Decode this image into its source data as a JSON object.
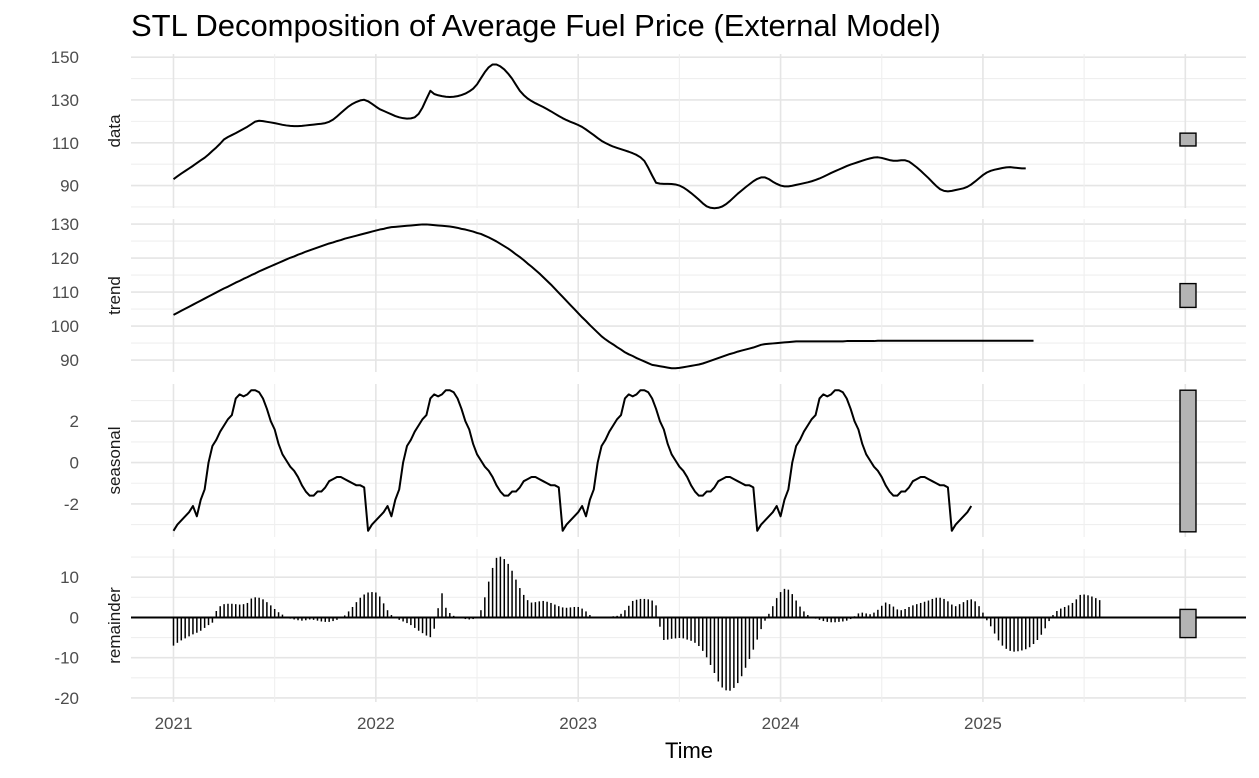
{
  "chart_data": {
    "type": "line",
    "title": "STL Decomposition of Average Fuel Price (External Model)",
    "xlabel": "Time",
    "x_ticks": [
      "2021",
      "2022",
      "2023",
      "2024",
      "2025"
    ],
    "xlim": [
      2020.79,
      2026.3
    ],
    "x_start": 2021.0,
    "x_step": 0.0192308,
    "grid": true,
    "panels": [
      {
        "name": "data",
        "type": "line",
        "ylim": [
          79.5,
          151.5
        ],
        "y_ticks": [
          90,
          110,
          130,
          150
        ],
        "y_tick_labels": [
          "90",
          "110",
          "130",
          "150"
        ],
        "range_bar": [
          108.5,
          114.5
        ],
        "values": [
          93.0,
          94.3,
          95.6,
          96.8,
          98.0,
          99.2,
          100.5,
          101.8,
          103.0,
          104.5,
          106.2,
          107.8,
          109.6,
          111.6,
          112.7,
          113.6,
          114.5,
          115.5,
          116.5,
          117.5,
          118.7,
          119.9,
          120.3,
          120.1,
          119.8,
          119.5,
          119.2,
          118.8,
          118.4,
          118.1,
          117.9,
          117.8,
          117.8,
          117.9,
          118.1,
          118.3,
          118.5,
          118.7,
          118.9,
          119.2,
          119.8,
          120.8,
          122.3,
          123.9,
          125.5,
          127.0,
          128.2,
          129.1,
          129.8,
          130.1,
          129.4,
          128.2,
          126.9,
          125.7,
          124.9,
          124.1,
          123.3,
          122.5,
          121.9,
          121.5,
          121.3,
          121.4,
          121.9,
          123.5,
          126.5,
          130.5,
          134.3,
          132.8,
          132.2,
          131.8,
          131.5,
          131.4,
          131.5,
          131.8,
          132.3,
          133.0,
          134.0,
          135.3,
          137.3,
          140.2,
          143.0,
          145.3,
          146.6,
          146.6,
          145.7,
          144.3,
          142.3,
          140.0,
          137.1,
          134.3,
          132.3,
          130.7,
          129.5,
          128.5,
          127.6,
          126.7,
          125.7,
          124.7,
          123.6,
          122.5,
          121.5,
          120.6,
          119.8,
          119.1,
          118.3,
          117.4,
          116.2,
          114.9,
          113.6,
          112.2,
          110.9,
          109.9,
          109.0,
          108.2,
          107.6,
          107.0,
          106.4,
          105.8,
          105.1,
          104.3,
          103.2,
          101.5,
          98.3,
          94.7,
          91.3,
          90.9,
          90.8,
          90.8,
          90.7,
          90.5,
          90.0,
          89.1,
          87.9,
          86.5,
          85.0,
          83.4,
          81.7,
          80.3,
          79.6,
          79.4,
          79.6,
          80.2,
          81.3,
          82.8,
          84.5,
          86.2,
          87.7,
          89.2,
          90.6,
          92.0,
          93.1,
          93.8,
          93.8,
          93.0,
          91.8,
          90.8,
          90.0,
          89.6,
          89.6,
          89.9,
          90.3,
          90.7,
          91.1,
          91.5,
          92.0,
          92.6,
          93.3,
          94.1,
          95.0,
          95.9,
          96.7,
          97.5,
          98.3,
          99.1,
          99.8,
          100.4,
          101.0,
          101.6,
          102.2,
          102.7,
          103.1,
          103.2,
          102.9,
          102.4,
          101.9,
          101.6,
          101.6,
          101.8,
          101.8,
          101.2,
          99.9,
          98.5,
          96.9,
          95.2,
          93.5,
          91.6,
          89.8,
          88.3,
          87.5,
          87.3,
          87.5,
          87.9,
          88.3,
          88.7,
          89.4,
          90.5,
          91.9,
          93.4,
          94.9,
          96.1,
          96.9,
          97.4,
          97.8,
          98.2,
          98.5,
          98.6,
          98.4,
          98.2,
          98.0,
          98.0
        ]
      },
      {
        "name": "trend",
        "type": "line",
        "ylim": [
          86.5,
          131.5
        ],
        "y_ticks": [
          90,
          100,
          110,
          120,
          130
        ],
        "y_tick_labels": [
          "90",
          "100",
          "110",
          "120",
          "130"
        ],
        "range_bar": [
          105.5,
          112.5
        ],
        "values": [
          103.3,
          103.9,
          104.5,
          105.1,
          105.7,
          106.3,
          106.9,
          107.5,
          108.1,
          108.7,
          109.3,
          109.9,
          110.5,
          111.1,
          111.6,
          112.2,
          112.8,
          113.3,
          113.9,
          114.4,
          115.0,
          115.5,
          116.1,
          116.6,
          117.1,
          117.6,
          118.1,
          118.6,
          119.1,
          119.6,
          120.1,
          120.5,
          121.0,
          121.4,
          121.9,
          122.3,
          122.7,
          123.1,
          123.5,
          123.9,
          124.3,
          124.6,
          125.0,
          125.3,
          125.7,
          126.0,
          126.3,
          126.6,
          126.9,
          127.2,
          127.5,
          127.8,
          128.1,
          128.4,
          128.6,
          128.9,
          129.1,
          129.2,
          129.3,
          129.4,
          129.5,
          129.6,
          129.7,
          129.8,
          129.9,
          129.9,
          129.8,
          129.7,
          129.6,
          129.5,
          129.4,
          129.3,
          129.1,
          128.9,
          128.6,
          128.4,
          128.1,
          127.8,
          127.4,
          127.1,
          126.6,
          126.1,
          125.5,
          124.9,
          124.2,
          123.5,
          122.8,
          122.0,
          121.1,
          120.3,
          119.4,
          118.4,
          117.5,
          116.5,
          115.5,
          114.4,
          113.3,
          112.2,
          111.0,
          109.8,
          108.6,
          107.4,
          106.2,
          105.0,
          103.8,
          102.6,
          101.5,
          100.3,
          99.2,
          98.1,
          97.0,
          96.1,
          95.3,
          94.6,
          93.8,
          93.1,
          92.3,
          91.7,
          91.2,
          90.6,
          90.1,
          89.6,
          89.1,
          88.6,
          88.4,
          88.2,
          88.0,
          87.8,
          87.6,
          87.6,
          87.7,
          87.9,
          88.1,
          88.3,
          88.5,
          88.7,
          89.0,
          89.4,
          89.8,
          90.2,
          90.6,
          91.0,
          91.4,
          91.8,
          92.1,
          92.5,
          92.8,
          93.1,
          93.4,
          93.7,
          94.1,
          94.5,
          94.7,
          94.8,
          94.9,
          95.0,
          95.1,
          95.2,
          95.3,
          95.4,
          95.5,
          95.5,
          95.5,
          95.5,
          95.5,
          95.5,
          95.5,
          95.5,
          95.5,
          95.5,
          95.5,
          95.5,
          95.5,
          95.6,
          95.6,
          95.6,
          95.6,
          95.6,
          95.6,
          95.6,
          95.6,
          95.7,
          95.7,
          95.7,
          95.7,
          95.7,
          95.7,
          95.7,
          95.7,
          95.7,
          95.7,
          95.7,
          95.7,
          95.7,
          95.7,
          95.7,
          95.7,
          95.7,
          95.7,
          95.7,
          95.7,
          95.7,
          95.7,
          95.7,
          95.7,
          95.7,
          95.7,
          95.7,
          95.7,
          95.7,
          95.7,
          95.7,
          95.7,
          95.7,
          95.7,
          95.7,
          95.7,
          95.7,
          95.7,
          95.7,
          95.7,
          95.7
        ]
      },
      {
        "name": "seasonal",
        "type": "line",
        "ylim": [
          -3.6,
          3.8
        ],
        "y_ticks": [
          -2,
          0,
          2
        ],
        "y_tick_labels": [
          "-2",
          "0",
          "2"
        ],
        "range_bar": [
          -3.35,
          3.5
        ],
        "values": [
          -3.3,
          -3.0,
          -2.8,
          -2.6,
          -2.4,
          -2.1,
          -2.6,
          -1.8,
          -1.3,
          0.0,
          0.8,
          1.1,
          1.5,
          1.8,
          2.1,
          2.3,
          3.1,
          3.3,
          3.2,
          3.3,
          3.5,
          3.5,
          3.4,
          3.1,
          2.6,
          2.0,
          1.6,
          0.9,
          0.4,
          0.1,
          -0.2,
          -0.4,
          -0.7,
          -1.1,
          -1.4,
          -1.6,
          -1.6,
          -1.4,
          -1.4,
          -1.2,
          -0.9,
          -0.8,
          -0.7,
          -0.7,
          -0.8,
          -0.9,
          -1.0,
          -1.1,
          -1.1,
          -1.2,
          -3.3,
          -3.0,
          -2.8,
          -2.6,
          -2.4,
          -2.1,
          -2.6,
          -1.8,
          -1.3,
          0.0,
          0.8,
          1.1,
          1.5,
          1.8,
          2.1,
          2.3,
          3.1,
          3.3,
          3.2,
          3.3,
          3.5,
          3.5,
          3.4,
          3.1,
          2.6,
          2.0,
          1.6,
          0.9,
          0.4,
          0.1,
          -0.2,
          -0.4,
          -0.7,
          -1.1,
          -1.4,
          -1.6,
          -1.6,
          -1.4,
          -1.4,
          -1.2,
          -0.9,
          -0.8,
          -0.7,
          -0.7,
          -0.8,
          -0.9,
          -1.0,
          -1.1,
          -1.1,
          -1.2,
          -3.3,
          -3.0,
          -2.8,
          -2.6,
          -2.4,
          -2.1,
          -2.6,
          -1.8,
          -1.3,
          0.0,
          0.8,
          1.1,
          1.5,
          1.8,
          2.1,
          2.3,
          3.1,
          3.3,
          3.2,
          3.3,
          3.5,
          3.5,
          3.4,
          3.1,
          2.6,
          2.0,
          1.6,
          0.9,
          0.4,
          0.1,
          -0.2,
          -0.4,
          -0.7,
          -1.1,
          -1.4,
          -1.6,
          -1.6,
          -1.4,
          -1.4,
          -1.2,
          -0.9,
          -0.8,
          -0.7,
          -0.7,
          -0.8,
          -0.9,
          -1.0,
          -1.1,
          -1.1,
          -1.2,
          -3.3,
          -3.0,
          -2.8,
          -2.6,
          -2.4,
          -2.1,
          -2.6,
          -1.8,
          -1.3,
          0.0,
          0.8,
          1.1,
          1.5,
          1.8,
          2.1,
          2.3,
          3.1,
          3.3,
          3.2,
          3.3,
          3.5,
          3.5,
          3.4,
          3.1,
          2.6,
          2.0,
          1.6,
          0.9,
          0.4,
          0.1,
          -0.2,
          -0.4,
          -0.7,
          -1.1,
          -1.4,
          -1.6,
          -1.6,
          -1.4,
          -1.4,
          -1.2,
          -0.9,
          -0.8,
          -0.7,
          -0.7,
          -0.8,
          -0.9,
          -1.0,
          -1.1,
          -1.1,
          -1.2,
          -3.3,
          -3.0,
          -2.8,
          -2.6,
          -2.4,
          -2.1
        ]
      },
      {
        "name": "remainder",
        "type": "bar",
        "ylim": [
          -21,
          17
        ],
        "y_ticks": [
          -20,
          -10,
          0,
          10
        ],
        "y_tick_labels": [
          "-20",
          "-10",
          "0",
          "10"
        ],
        "range_bar": [
          -5,
          2
        ],
        "values": [
          -7.0,
          -6.3,
          -5.7,
          -5.2,
          -4.7,
          -4.2,
          -3.8,
          -3.3,
          -2.6,
          -1.9,
          -1.3,
          1.6,
          2.8,
          3.3,
          3.4,
          3.4,
          3.3,
          3.2,
          3.3,
          3.6,
          4.7,
          5.0,
          4.9,
          4.5,
          3.8,
          3.0,
          2.1,
          1.3,
          0.7,
          0.2,
          -0.3,
          -0.5,
          -0.7,
          -0.8,
          -0.7,
          -0.5,
          -0.6,
          -0.8,
          -1.0,
          -1.1,
          -1.1,
          -0.9,
          -0.6,
          -0.2,
          0.5,
          1.5,
          2.6,
          3.8,
          4.9,
          5.7,
          6.2,
          6.3,
          6.2,
          5.2,
          3.5,
          1.8,
          0.6,
          -0.2,
          -0.6,
          -1.0,
          -1.4,
          -1.9,
          -2.6,
          -3.3,
          -3.9,
          -4.5,
          -4.9,
          -2.8,
          2.3,
          6.0,
          2.4,
          1.1,
          0.4,
          0.1,
          -0.2,
          -0.4,
          -0.5,
          -0.4,
          0.1,
          1.8,
          5.0,
          8.9,
          12.3,
          14.8,
          15.1,
          14.5,
          13.3,
          11.6,
          9.4,
          7.3,
          5.6,
          4.3,
          3.7,
          3.8,
          4.0,
          4.1,
          3.9,
          3.6,
          3.2,
          2.8,
          2.5,
          2.4,
          2.5,
          2.6,
          2.6,
          2.2,
          1.5,
          0.6,
          0.1,
          -0.1,
          0.1,
          0.2,
          0.2,
          0.3,
          0.4,
          0.9,
          1.8,
          2.9,
          4.1,
          4.4,
          4.6,
          4.6,
          4.5,
          4.2,
          3.0,
          -2.3,
          -5.6,
          -5.5,
          -5.3,
          -5.2,
          -5.1,
          -5.2,
          -5.5,
          -5.8,
          -6.3,
          -7.1,
          -8.3,
          -9.9,
          -11.8,
          -13.8,
          -15.9,
          -17.4,
          -18.1,
          -18.2,
          -17.5,
          -16.3,
          -14.6,
          -12.5,
          -10.3,
          -8.0,
          -5.5,
          -2.9,
          -0.8,
          0.9,
          2.8,
          4.8,
          6.3,
          7.1,
          6.9,
          5.8,
          4.2,
          2.7,
          1.5,
          0.6,
          0.1,
          -0.3,
          -0.6,
          -0.9,
          -1.1,
          -1.2,
          -1.2,
          -1.1,
          -1.0,
          -0.8,
          -0.4,
          0.3,
          1.0,
          1.2,
          1.0,
          0.8,
          1.2,
          1.9,
          2.9,
          3.7,
          3.3,
          2.7,
          2.0,
          1.8,
          2.1,
          2.6,
          3.0,
          3.3,
          3.6,
          3.9,
          4.2,
          4.6,
          4.9,
          4.9,
          4.6,
          4.0,
          3.2,
          2.8,
          3.3,
          3.8,
          4.3,
          4.5,
          4.0,
          2.8,
          1.2,
          -0.7,
          -2.2,
          -4.0,
          -5.7,
          -7.0,
          -7.8,
          -8.3,
          -8.5,
          -8.4,
          -8.2,
          -7.9,
          -7.4,
          -6.6,
          -5.6,
          -4.3,
          -2.7,
          -0.9,
          0.6,
          1.6,
          2.2,
          2.6,
          3.0,
          3.6,
          4.5,
          5.6,
          5.7,
          5.5,
          5.2,
          4.8,
          4.3
        ]
      }
    ]
  }
}
